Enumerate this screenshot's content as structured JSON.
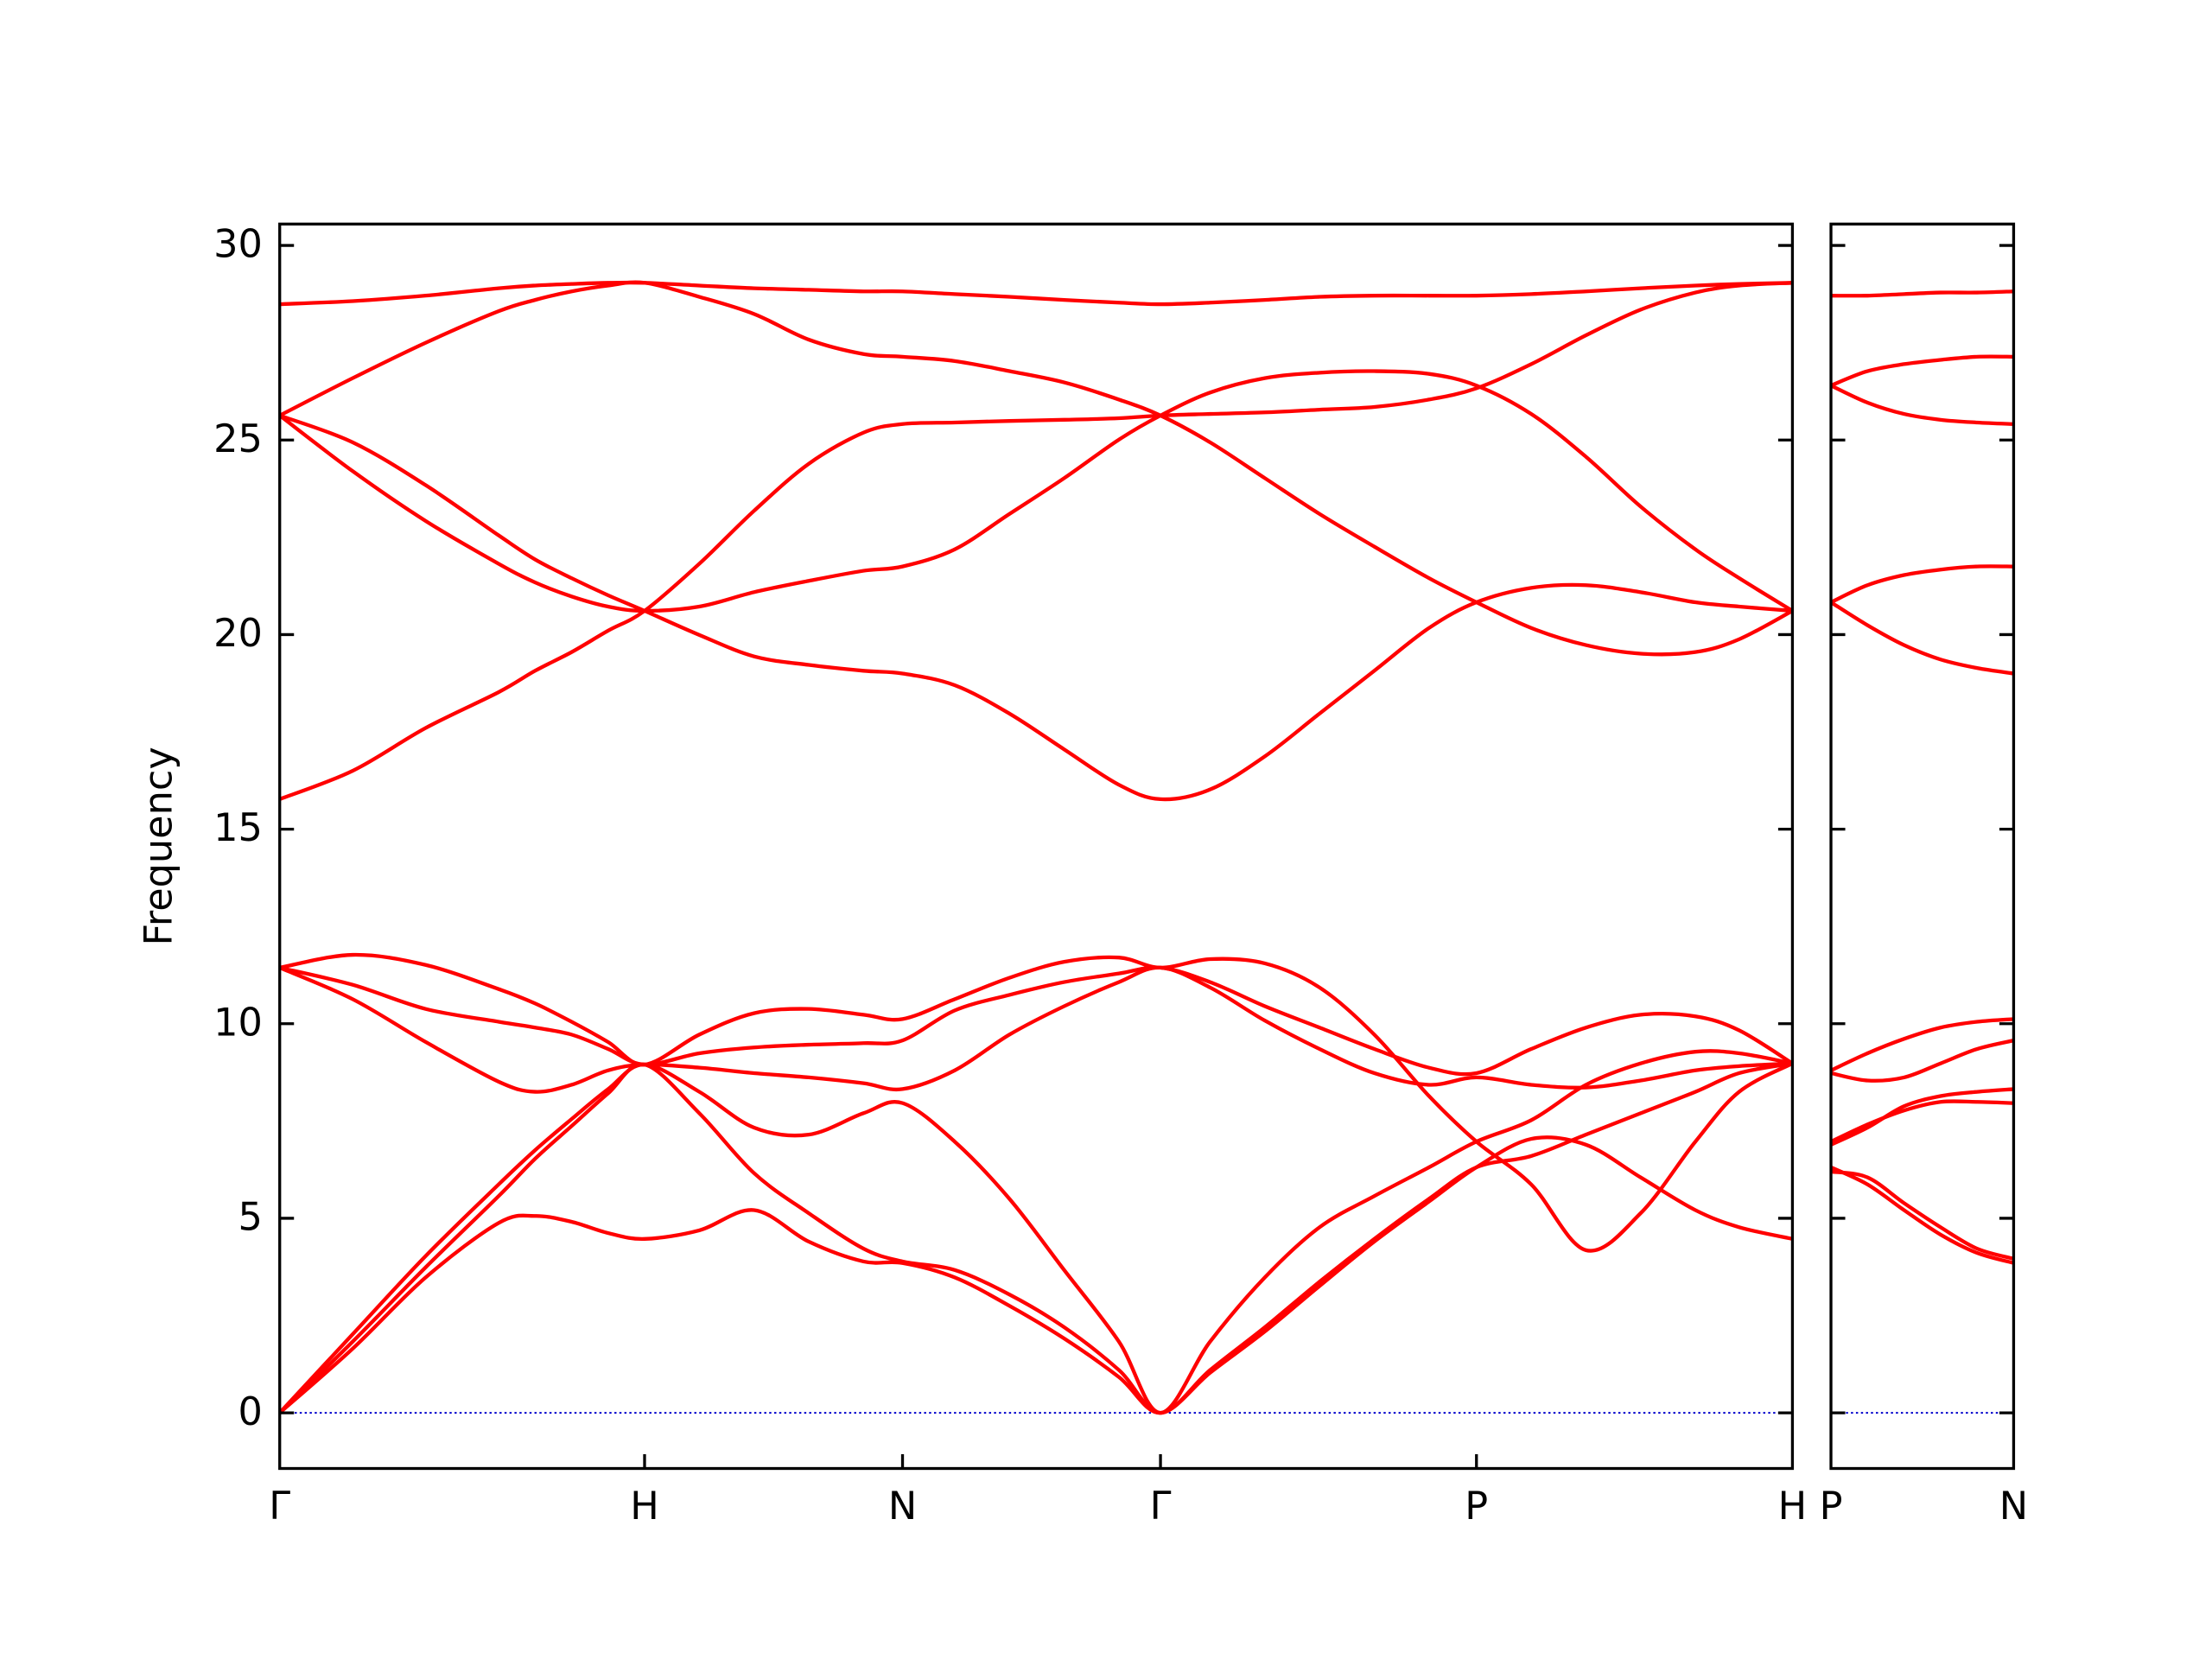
{
  "chart_data": [
    {
      "type": "line",
      "ylabel": "Frequency",
      "x": [
        0,
        0.2,
        0.4,
        0.6,
        0.7,
        0.8,
        0.9,
        1.0,
        1.15,
        1.3,
        1.45,
        1.6,
        1.707,
        1.85,
        2.0,
        2.15,
        2.3,
        2.414,
        2.55,
        2.7,
        2.85,
        3.0,
        3.15,
        3.28,
        3.43,
        3.58,
        3.73,
        3.88,
        4.0,
        4.146
      ],
      "xlim": [
        0,
        4.146
      ],
      "xticks": [
        {
          "value": 0,
          "label": "Γ"
        },
        {
          "value": 1,
          "label": "H"
        },
        {
          "value": 1.707,
          "label": "N"
        },
        {
          "value": 2.414,
          "label": "Γ"
        },
        {
          "value": 3.28,
          "label": "P"
        },
        {
          "value": 4.146,
          "label": "H"
        }
      ],
      "ylim": [
        -1.43,
        30.55
      ],
      "yticks": [
        0,
        5,
        10,
        15,
        20,
        25,
        30
      ],
      "hlines": [
        {
          "value": 0,
          "color": "#0000cc"
        }
      ],
      "series": [
        {
          "color": "#ff0000",
          "values": [
            0,
            1.65,
            3.48,
            4.88,
            5.06,
            4.91,
            4.62,
            4.47,
            4.69,
            5.21,
            4.4,
            3.89,
            3.85,
            3.48,
            2.75,
            1.91,
            0.92,
            0,
            1.03,
            2.09,
            3.26,
            4.4,
            5.43,
            6.31,
            7.04,
            6.89,
            6.05,
            5.21,
            4.77,
            4.47
          ]
        },
        {
          "color": "#ff0000",
          "values": [
            0,
            1.83,
            3.74,
            5.57,
            6.53,
            7.37,
            8.21,
            8.95,
            7.7,
            6.16,
            5.13,
            4.22,
            3.89,
            3.67,
            3.04,
            2.2,
            1.1,
            0,
            1.1,
            2.2,
            3.37,
            4.47,
            5.5,
            6.31,
            6.6,
            7.15,
            7.7,
            8.25,
            8.73,
            8.98
          ]
        },
        {
          "color": "#ff0000",
          "values": [
            0,
            2.02,
            4.03,
            5.87,
            6.75,
            7.55,
            8.32,
            8.95,
            8.25,
            7.33,
            7.15,
            7.7,
            7.96,
            6.97,
            5.5,
            3.67,
            1.83,
            0,
            1.83,
            3.48,
            4.77,
            5.57,
            6.31,
            6.97,
            7.52,
            8.43,
            8.98,
            9.28,
            9.24,
            8.98
          ]
        },
        {
          "color": "#ff0000",
          "values": [
            11.44,
            10.63,
            9.53,
            8.51,
            8.25,
            8.43,
            8.8,
            8.95,
            8.87,
            8.73,
            8.62,
            8.47,
            8.32,
            8.8,
            9.72,
            10.45,
            11.07,
            11.44,
            10.93,
            10.08,
            9.35,
            8.73,
            8.43,
            8.62,
            8.43,
            8.36,
            8.54,
            8.8,
            8.91,
            8.98
          ]
        },
        {
          "color": "#ff0000",
          "values": [
            11.44,
            11.0,
            10.38,
            10.05,
            9.9,
            9.72,
            9.35,
            8.95,
            9.24,
            9.39,
            9.46,
            9.5,
            9.57,
            10.34,
            10.74,
            11.07,
            11.29,
            11.44,
            11.07,
            10.45,
            9.9,
            9.35,
            8.87,
            8.73,
            9.35,
            9.9,
            10.23,
            10.19,
            9.83,
            8.98
          ]
        },
        {
          "color": "#ff0000",
          "values": [
            11.44,
            11.77,
            11.51,
            10.89,
            10.52,
            10.05,
            9.53,
            8.95,
            9.72,
            10.27,
            10.38,
            10.23,
            10.12,
            10.63,
            11.18,
            11.59,
            11.7,
            11.44,
            11.66,
            11.55,
            10.93,
            9.72,
            8.14,
            6.97,
            5.87,
            4.18,
            5.13,
            6.97,
            8.25,
            8.98
          ]
        },
        {
          "color": "#ff0000",
          "values": [
            15.77,
            16.5,
            17.6,
            18.52,
            19.07,
            19.55,
            20.1,
            20.61,
            21.82,
            23.18,
            24.39,
            25.19,
            25.41,
            25.45,
            25.49,
            25.52,
            25.56,
            25.63,
            25.67,
            25.71,
            25.78,
            25.85,
            26.04,
            26.33,
            26.95,
            27.69,
            28.35,
            28.79,
            28.97,
            29.04
          ]
        },
        {
          "color": "#ff0000",
          "values": [
            25.63,
            24.2,
            22.92,
            21.82,
            21.34,
            20.98,
            20.72,
            20.61,
            20.72,
            21.09,
            21.38,
            21.64,
            21.75,
            22.19,
            23.1,
            24.02,
            25.01,
            25.63,
            26.22,
            26.59,
            26.73,
            26.77,
            26.7,
            26.4,
            25.67,
            24.57,
            23.29,
            22.19,
            21.45,
            20.61
          ]
        },
        {
          "color": "#ff0000",
          "values": [
            25.63,
            24.94,
            23.84,
            22.55,
            21.93,
            21.45,
            21.01,
            20.61,
            19.99,
            19.44,
            19.22,
            19.07,
            19.0,
            18.7,
            17.97,
            17.05,
            16.14,
            15.77,
            16.02,
            16.87,
            17.97,
            19.07,
            20.17,
            20.83,
            21.2,
            21.27,
            21.09,
            20.83,
            20.72,
            20.61
          ]
        },
        {
          "color": "#ff0000",
          "values": [
            25.63,
            26.59,
            27.5,
            28.31,
            28.6,
            28.82,
            28.97,
            29.04,
            28.68,
            28.24,
            27.58,
            27.21,
            27.14,
            27.03,
            26.77,
            26.48,
            26.04,
            25.63,
            24.94,
            24.02,
            23.1,
            22.26,
            21.45,
            20.83,
            20.17,
            19.73,
            19.51,
            19.55,
            19.88,
            20.61
          ]
        },
        {
          "color": "#ff0000",
          "values": [
            28.49,
            28.57,
            28.71,
            28.9,
            28.97,
            29.01,
            29.04,
            29.04,
            28.97,
            28.9,
            28.86,
            28.82,
            28.82,
            28.75,
            28.68,
            28.6,
            28.53,
            28.49,
            28.53,
            28.6,
            28.68,
            28.71,
            28.71,
            28.71,
            28.75,
            28.82,
            28.9,
            28.97,
            29.01,
            29.04
          ]
        }
      ]
    },
    {
      "type": "line",
      "x": [
        0,
        0.1,
        0.2,
        0.3,
        0.4,
        0.5
      ],
      "xlim": [
        0,
        0.5
      ],
      "xticks": [
        {
          "value": 0,
          "label": "P"
        },
        {
          "value": 0.5,
          "label": "N"
        }
      ],
      "ylim": [
        -1.43,
        30.55
      ],
      "hlines": [
        {
          "value": 0,
          "color": "#0000cc"
        }
      ],
      "series": [
        {
          "color": "#ff0000",
          "values": [
            6.31,
            5.87,
            5.21,
            4.58,
            4.11,
            3.85
          ]
        },
        {
          "color": "#ff0000",
          "values": [
            6.2,
            6.05,
            5.39,
            4.77,
            4.22,
            3.96
          ]
        },
        {
          "color": "#ff0000",
          "values": [
            6.97,
            7.41,
            7.77,
            7.99,
            7.99,
            7.96
          ]
        },
        {
          "color": "#ff0000",
          "values": [
            6.89,
            7.33,
            7.88,
            8.14,
            8.25,
            8.32
          ]
        },
        {
          "color": "#ff0000",
          "values": [
            8.73,
            8.54,
            8.62,
            8.98,
            9.35,
            9.57
          ]
        },
        {
          "color": "#ff0000",
          "values": [
            8.8,
            9.24,
            9.61,
            9.9,
            10.05,
            10.12
          ]
        },
        {
          "color": "#ff0000",
          "values": [
            20.83,
            21.27,
            21.53,
            21.67,
            21.75,
            21.75
          ]
        },
        {
          "color": "#ff0000",
          "values": [
            20.83,
            20.24,
            19.73,
            19.36,
            19.14,
            19.0
          ]
        },
        {
          "color": "#ff0000",
          "values": [
            26.4,
            26.77,
            26.95,
            27.06,
            27.14,
            27.14
          ]
        },
        {
          "color": "#ff0000",
          "values": [
            26.4,
            25.96,
            25.67,
            25.52,
            25.45,
            25.41
          ]
        },
        {
          "color": "#ff0000",
          "values": [
            28.71,
            28.71,
            28.75,
            28.79,
            28.79,
            28.82
          ]
        }
      ]
    }
  ]
}
